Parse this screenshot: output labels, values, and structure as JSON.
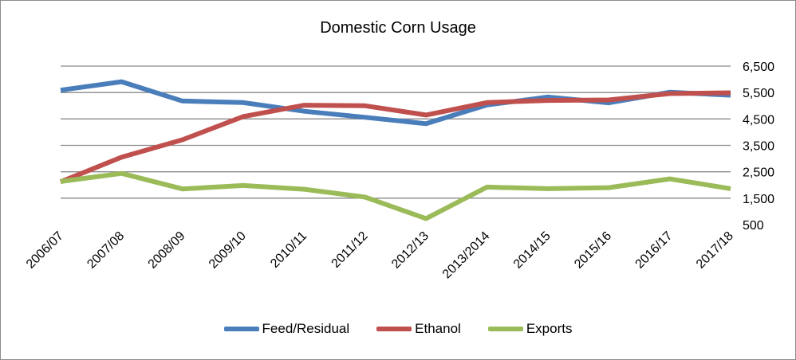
{
  "chart_data": {
    "type": "line",
    "title": "Domestic Corn Usage",
    "xlabel": "",
    "ylabel": "",
    "categories": [
      "2006/07",
      "2007/08",
      "2008/09",
      "2009/10",
      "2010/11",
      "2011/12",
      "2012/13",
      "2013/2014",
      "2014/15",
      "2015/16",
      "2016/17",
      "2017/18"
    ],
    "ylim": [
      500,
      6500
    ],
    "yticks": [
      "500",
      "1,500",
      "2,500",
      "3,500",
      "4,500",
      "5,500",
      "6,500"
    ],
    "ytick_values": [
      500,
      1500,
      2500,
      3500,
      4500,
      5500,
      6500
    ],
    "grid": true,
    "legend_position": "bottom",
    "series": [
      {
        "name": "Feed/Residual",
        "color": "#4a7ebb",
        "values": [
          5590,
          5910,
          5180,
          5120,
          4790,
          4560,
          4320,
          5030,
          5330,
          5110,
          5510,
          5400
        ]
      },
      {
        "name": "Ethanol",
        "color": "#c0504d",
        "values": [
          2120,
          3050,
          3710,
          4590,
          5020,
          5000,
          4650,
          5120,
          5200,
          5220,
          5460,
          5490
        ]
      },
      {
        "name": "Exports",
        "color": "#9bbb59",
        "values": [
          2130,
          2440,
          1850,
          1980,
          1840,
          1540,
          730,
          1920,
          1860,
          1900,
          2230,
          1860
        ]
      }
    ]
  }
}
